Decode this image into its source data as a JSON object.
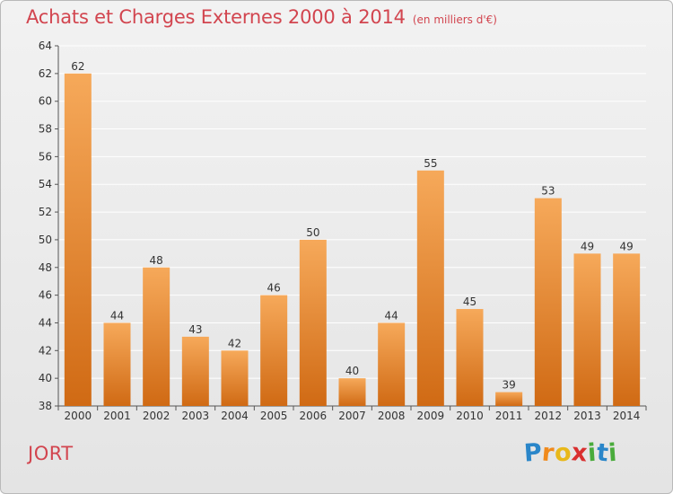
{
  "header": {
    "title": "Achats et Charges Externes 2000 à 2014",
    "subtitle": "(en milliers d'€)"
  },
  "footer": {
    "commune": "JORT",
    "logo_letters": [
      {
        "ch": "P",
        "color": "#2a86c9"
      },
      {
        "ch": "r",
        "color": "#f08a1c"
      },
      {
        "ch": "o",
        "color": "#e8b81a"
      },
      {
        "ch": "x",
        "color": "#d92f2f"
      },
      {
        "ch": "i",
        "color": "#49ab3b"
      },
      {
        "ch": "t",
        "color": "#2a86c9"
      },
      {
        "ch": "i",
        "color": "#49ab3b"
      }
    ]
  },
  "chart_data": {
    "type": "bar",
    "categories": [
      "2000",
      "2001",
      "2002",
      "2003",
      "2004",
      "2005",
      "2006",
      "2007",
      "2008",
      "2009",
      "2010",
      "2011",
      "2012",
      "2013",
      "2014"
    ],
    "values": [
      62,
      44,
      48,
      43,
      42,
      46,
      50,
      40,
      44,
      55,
      45,
      39,
      53,
      49,
      49
    ],
    "ylim": [
      38,
      64
    ],
    "yticks": [
      38,
      40,
      42,
      44,
      46,
      48,
      50,
      52,
      54,
      56,
      58,
      60,
      62,
      64
    ],
    "grid": true,
    "bar_color_top": "#f6a95a",
    "bar_color_bottom": "#d06a14"
  }
}
